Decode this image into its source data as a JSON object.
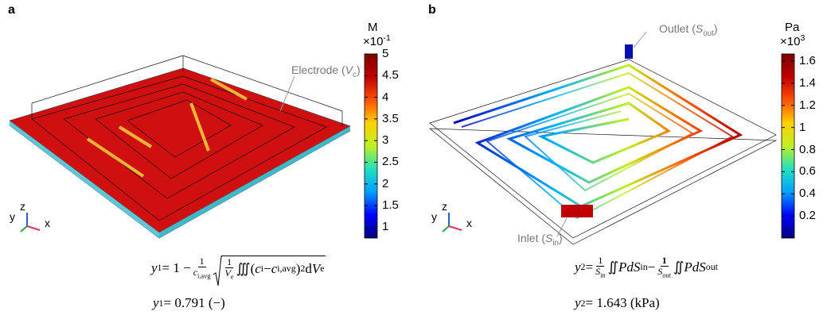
{
  "panels": [
    {
      "label": "a",
      "annotation": [
        "Electrode (",
        {
          "it": "V"
        },
        {
          "sub": "c"
        },
        ")"
      ],
      "axes_labels": [
        "y",
        "z",
        "x"
      ],
      "colorbar": {
        "unit": "M",
        "multiplier": "×10",
        "exponent": "-1",
        "lim": [
          0.75,
          5
        ],
        "ticks": [
          5,
          4.5,
          4,
          3.5,
          3,
          2.5,
          2,
          1.5,
          1
        ],
        "colormap": [
          "#00007f",
          "#0000ff",
          "#00a0ff",
          "#20e0c0",
          "#c0f020",
          "#ffd000",
          "#ff5000",
          "#c00000",
          "#800000"
        ]
      },
      "equation": [
        {
          "it": "y"
        },
        {
          "sub": "1"
        },
        " = 1 − ",
        {
          "num": "1",
          "den": "c",
          "den_sub": "i,avg"
        },
        {
          "sqrt": [
            {
              "num": "1",
              "den": "V",
              "den_sub": "e"
            },
            "∭(",
            {
              "it": "c"
            },
            {
              "sub": "i"
            },
            " − ",
            {
              "it": "c"
            },
            {
              "sub": "i,avg"
            },
            ")",
            {
              "sup": "2"
            },
            "d",
            {
              "it": "V"
            },
            {
              "sub": "e"
            }
          ]
        }
      ],
      "result": [
        {
          "it": "y"
        },
        {
          "sub": "1"
        },
        " = 0.791 (−)"
      ]
    },
    {
      "label": "b",
      "annotation_outlet": [
        "Outlet (",
        {
          "it": "S"
        },
        {
          "sub": "out"
        },
        ")"
      ],
      "annotation_inlet": [
        "Inlet (",
        {
          "it": "S"
        },
        {
          "sub": "in"
        },
        ")"
      ],
      "axes_labels": [
        "y",
        "z",
        "x"
      ],
      "colorbar": {
        "unit": "Pa",
        "multiplier": "×10",
        "exponent": "3",
        "lim": [
          0,
          1.665
        ],
        "ticks": [
          1.6,
          1.4,
          1.2,
          1,
          0.8,
          0.6,
          0.4,
          0.2
        ],
        "colormap": [
          "#00007f",
          "#0000ff",
          "#00a0ff",
          "#20e0c0",
          "#c0f020",
          "#ffd000",
          "#ff5000",
          "#c00000",
          "#800000"
        ]
      },
      "equation": [
        {
          "it": "y"
        },
        {
          "sub": "2"
        },
        " = ",
        {
          "num": "1",
          "den": "S",
          "den_sub": "in"
        },
        "∬ ",
        {
          "it": "PdS"
        },
        {
          "sub": "in"
        },
        " − ",
        {
          "num": "1",
          "den": "S",
          "den_sub": "out",
          "bold": true
        },
        "∬ ",
        {
          "it": "PdS"
        },
        {
          "sub": "out"
        }
      ],
      "result": [
        {
          "it": "y"
        },
        {
          "sub": "2"
        },
        " = 1.643 (kPa)"
      ]
    }
  ]
}
